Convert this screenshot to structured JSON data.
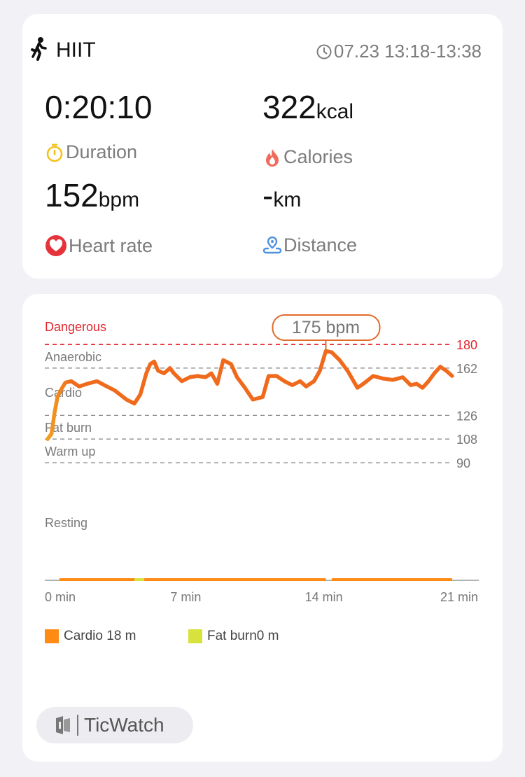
{
  "summary": {
    "workout_name": "HIIT",
    "time_range": "07.23 13:18-13:38",
    "duration": {
      "value": "0:20:10",
      "label": "Duration"
    },
    "calories": {
      "value": "322",
      "unit": "kcal",
      "label": "Calories"
    },
    "heart_rate": {
      "value": "152",
      "unit": "bpm",
      "label": "Heart rate"
    },
    "distance": {
      "value": "-",
      "unit": "km",
      "label": "Distance"
    }
  },
  "colors": {
    "danger_red": "#e3262d",
    "line_orange": "#f06a1d",
    "line_start": "#f3a020",
    "cardio_orange": "#ff8a14",
    "fatburn_green": "#d8e23c",
    "duration_icon": "#f3c31d",
    "calories_icon": "#f06b5c",
    "heart_icon": "#e5333c",
    "distance_icon": "#4e92e0"
  },
  "chart_data": {
    "type": "line",
    "title": "",
    "xlabel": "",
    "ylabel": "",
    "x_unit": "min",
    "xlim": [
      0,
      21
    ],
    "x_ticks": [
      "0 min",
      "7 min",
      "14 min",
      "21 min"
    ],
    "y_ticks": [
      "180",
      "162",
      "126",
      "108",
      "90"
    ],
    "zones": [
      {
        "label": "Dangerous",
        "value": 180
      },
      {
        "label": "Anaerobic",
        "value": 162
      },
      {
        "label": "Cardio",
        "value": 126
      },
      {
        "label": "Fat burn",
        "value": 108
      },
      {
        "label": "Warm up",
        "value": 90
      },
      {
        "label": "Resting",
        "value": null
      }
    ],
    "peak": {
      "x": 14.1,
      "y": 175,
      "label": "175 bpm"
    },
    "series": [
      {
        "name": "",
        "x": [
          0.0,
          0.2,
          0.35,
          0.5,
          0.7,
          0.9,
          1.2,
          1.6,
          2.0,
          2.5,
          3.0,
          3.4,
          4.0,
          4.4,
          4.7,
          5.0,
          5.2,
          5.4,
          5.6,
          5.9,
          6.2,
          6.4,
          6.8,
          7.2,
          7.6,
          8.0,
          8.3,
          8.6,
          8.9,
          9.3,
          9.6,
          10.0,
          10.4,
          10.9,
          11.2,
          11.6,
          12.0,
          12.4,
          12.8,
          13.1,
          13.5,
          13.8,
          14.1,
          14.4,
          14.8,
          15.2,
          15.7,
          16.0,
          16.5,
          17.0,
          17.5,
          18.0,
          18.4,
          18.7,
          19.0,
          19.3,
          19.6,
          19.9,
          20.2,
          20.5
        ],
        "y": [
          108,
          112,
          128,
          140,
          146,
          151,
          152,
          148,
          150,
          152,
          148,
          145,
          138,
          135,
          142,
          158,
          165,
          167,
          160,
          158,
          162,
          158,
          152,
          155,
          156,
          155,
          158,
          150,
          168,
          165,
          155,
          147,
          138,
          140,
          156,
          156,
          152,
          149,
          152,
          148,
          152,
          160,
          175,
          174,
          168,
          160,
          147,
          150,
          156,
          154,
          153,
          155,
          149,
          150,
          147,
          152,
          158,
          163,
          160,
          156
        ]
      }
    ],
    "zone_time": [
      {
        "label": "Cardio 18 m",
        "color": "#ff8a14"
      },
      {
        "label": "Fat burn0 m",
        "color": "#d8e23c"
      }
    ]
  },
  "brand": {
    "name": "TicWatch"
  }
}
